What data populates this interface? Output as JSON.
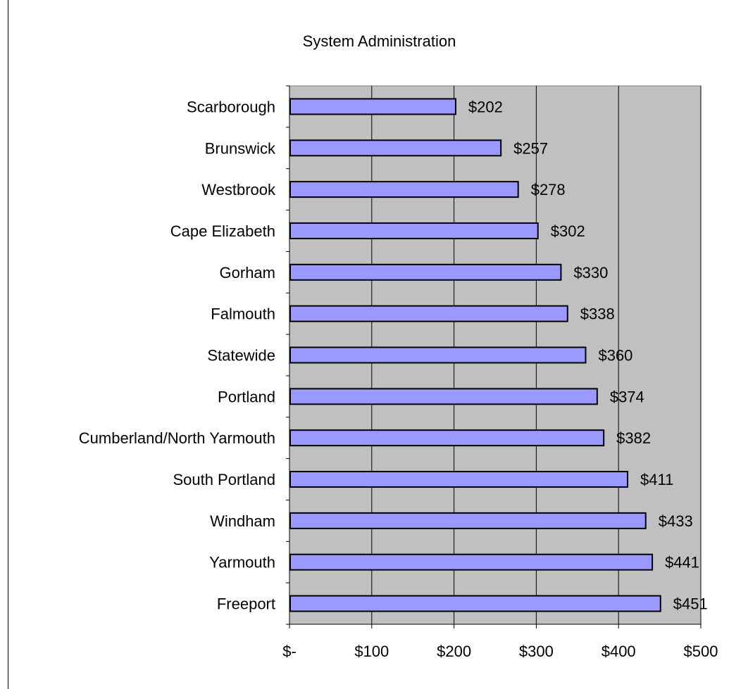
{
  "chart_data": {
    "type": "bar",
    "orientation": "horizontal",
    "title": "System Administration",
    "xlabel": "",
    "ylabel": "",
    "categories": [
      "Scarborough",
      "Brunswick",
      "Westbrook",
      "Cape Elizabeth",
      "Gorham ",
      "Falmouth",
      "Statewide",
      "Portland",
      "Cumberland/North Yarmouth",
      "South Portland",
      "Windham ",
      "Yarmouth",
      "Freeport"
    ],
    "values": [
      202,
      257,
      278,
      302,
      330,
      338,
      360,
      374,
      382,
      411,
      433,
      441,
      451
    ],
    "data_labels": [
      "$202",
      "$257",
      "$278",
      "$302",
      "$330",
      "$338",
      "$360",
      "$374",
      "$382",
      "$411",
      "$433",
      "$441",
      "$451"
    ],
    "x_ticks": [
      0,
      100,
      200,
      300,
      400,
      500
    ],
    "x_tick_labels": [
      "$-",
      "$100",
      "$200",
      "$300",
      "$400",
      "$500"
    ],
    "xlim": [
      0,
      500
    ],
    "grid": "vertical",
    "legend": "none",
    "colors": {
      "bar": "#9999ff",
      "bar_border": "#000000",
      "plot_bg": "#c0c0c0",
      "gridline": "#000000"
    }
  }
}
